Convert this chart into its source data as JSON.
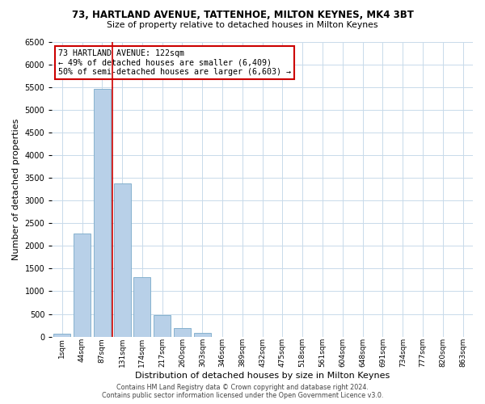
{
  "title_line1": "73, HARTLAND AVENUE, TATTENHOE, MILTON KEYNES, MK4 3BT",
  "title_line2": "Size of property relative to detached houses in Milton Keynes",
  "xlabel": "Distribution of detached houses by size in Milton Keynes",
  "ylabel": "Number of detached properties",
  "bar_labels": [
    "1sqm",
    "44sqm",
    "87sqm",
    "131sqm",
    "174sqm",
    "217sqm",
    "260sqm",
    "303sqm",
    "346sqm",
    "389sqm",
    "432sqm",
    "475sqm",
    "518sqm",
    "561sqm",
    "604sqm",
    "648sqm",
    "691sqm",
    "734sqm",
    "777sqm",
    "820sqm",
    "863sqm"
  ],
  "bar_values": [
    60,
    2280,
    5450,
    3380,
    1310,
    480,
    185,
    85,
    0,
    0,
    0,
    0,
    0,
    0,
    0,
    0,
    0,
    0,
    0,
    0,
    0
  ],
  "bar_color": "#b8d0e8",
  "bar_edge_color": "#7aaac8",
  "vline_x_idx": 2.5,
  "vline_color": "#cc0000",
  "annotation_title": "73 HARTLAND AVENUE: 122sqm",
  "annotation_line2": "← 49% of detached houses are smaller (6,409)",
  "annotation_line3": "50% of semi-detached houses are larger (6,603) →",
  "annotation_box_edge": "#cc0000",
  "ylim": [
    0,
    6500
  ],
  "yticks": [
    0,
    500,
    1000,
    1500,
    2000,
    2500,
    3000,
    3500,
    4000,
    4500,
    5000,
    5500,
    6000,
    6500
  ],
  "footer_line1": "Contains HM Land Registry data © Crown copyright and database right 2024.",
  "footer_line2": "Contains public sector information licensed under the Open Government Licence v3.0.",
  "bg_color": "#ffffff",
  "grid_color": "#c8daea"
}
